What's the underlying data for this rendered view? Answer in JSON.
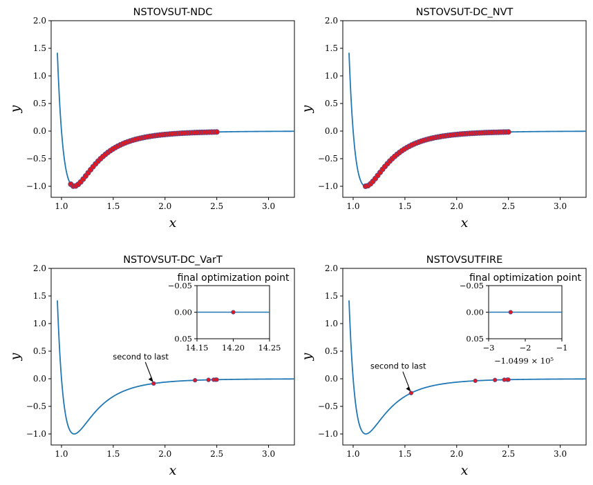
{
  "colors": {
    "curve": "#1f77b4",
    "point": "#e8161b",
    "point_edge": "#5b4a8a"
  },
  "chart_data": [
    {
      "type": "scatter",
      "title": "NSTOVSUT-NDC",
      "xlabel": "x",
      "ylabel": "y",
      "xlim": [
        0.9,
        3.25
      ],
      "ylim": [
        -1.2,
        2.0
      ],
      "xticks": [
        "1.0",
        "1.5",
        "2.0",
        "2.5",
        "3.0"
      ],
      "yticks": [
        "−1.0",
        "−0.5",
        "0.0",
        "0.5",
        "1.0",
        "1.5",
        "2.0"
      ],
      "curve": {
        "x_start": 0.96,
        "x_end": 3.25,
        "well_depth": 1.0,
        "r_min": 1.1225
      },
      "points": {
        "x_range": [
          1.09,
          2.5
        ],
        "count": 60,
        "dense": true
      }
    },
    {
      "type": "scatter",
      "title": "NSTOVSUT-DC_NVT",
      "xlabel": "x",
      "ylabel": "y",
      "xlim": [
        0.9,
        3.25
      ],
      "ylim": [
        -1.2,
        2.0
      ],
      "xticks": [
        "1.0",
        "1.5",
        "2.0",
        "2.5",
        "3.0"
      ],
      "yticks": [
        "−1.0",
        "−0.5",
        "0.0",
        "0.5",
        "1.0",
        "1.5",
        "2.0"
      ],
      "curve": {
        "x_start": 0.96,
        "x_end": 3.25,
        "well_depth": 1.0,
        "r_min": 1.1225
      },
      "points": {
        "x_range": [
          1.12,
          2.5
        ],
        "count": 60,
        "dense": true
      }
    },
    {
      "type": "scatter",
      "title": "NSTOVSUT-DC_VarT",
      "xlabel": "x",
      "ylabel": "y",
      "xlim": [
        0.9,
        3.25
      ],
      "ylim": [
        -1.2,
        2.0
      ],
      "xticks": [
        "1.0",
        "1.5",
        "2.0",
        "2.5",
        "3.0"
      ],
      "yticks": [
        "−1.0",
        "−0.5",
        "0.0",
        "0.5",
        "1.0",
        "1.5",
        "2.0"
      ],
      "curve": {
        "x_start": 0.96,
        "x_end": 3.25,
        "well_depth": 1.0,
        "r_min": 1.1225
      },
      "points": {
        "x": [
          1.89,
          2.29,
          2.42,
          2.47,
          2.49,
          2.5
        ]
      },
      "annotation": {
        "text": "second to last",
        "x": 1.89
      },
      "inset": {
        "title": "final optimization point",
        "xticks": [
          "14.15",
          "14.20",
          "14.25"
        ],
        "yticks": [
          "−0.05",
          "0.00",
          "0.05"
        ],
        "point_x_fraction": 0.5,
        "offset_label": ""
      }
    },
    {
      "type": "scatter",
      "title": "NSTOVSUTFIRE",
      "xlabel": "x",
      "ylabel": "y",
      "xlim": [
        0.9,
        3.25
      ],
      "ylim": [
        -1.2,
        2.0
      ],
      "xticks": [
        "1.0",
        "1.5",
        "2.0",
        "2.5",
        "3.0"
      ],
      "yticks": [
        "−1.0",
        "−0.5",
        "0.0",
        "0.5",
        "1.0",
        "1.5",
        "2.0"
      ],
      "curve": {
        "x_start": 0.96,
        "x_end": 3.25,
        "well_depth": 1.0,
        "r_min": 1.1225
      },
      "points": {
        "x": [
          1.56,
          2.18,
          2.37,
          2.46,
          2.49,
          2.5
        ]
      },
      "annotation": {
        "text": "second to last",
        "x": 1.56
      },
      "inset": {
        "title": "final optimization point",
        "xticks": [
          "−3",
          "−2",
          "−1"
        ],
        "yticks": [
          "−0.05",
          "0.00",
          "0.05"
        ],
        "point_x_fraction": 0.3,
        "offset_label": "−1.0499 × 10⁵"
      }
    }
  ]
}
